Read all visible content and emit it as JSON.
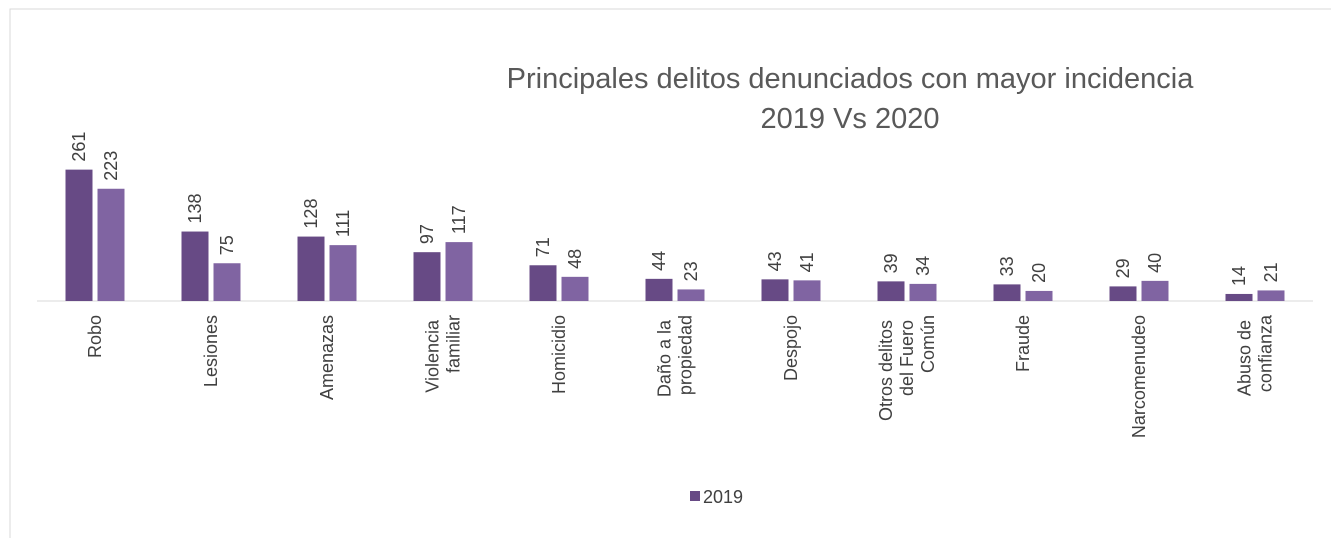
{
  "chart_data": {
    "type": "bar",
    "title": [
      "Principales delitos denunciados  con mayor incidencia",
      "2019 Vs 2020"
    ],
    "categories": [
      "Robo",
      "Lesiones",
      "Amenazas",
      "Violencia familiar",
      "Homicidio",
      "Daño a la propiedad",
      "Despojo",
      "Otros delitos del Fuero Común",
      "Fraude",
      "Narcomenudeo",
      "Abuso de confianza"
    ],
    "series": [
      {
        "name": "2019",
        "color": "#674a85",
        "values": [
          261,
          138,
          128,
          97,
          71,
          44,
          43,
          39,
          33,
          29,
          14
        ]
      },
      {
        "color": "#8064a2",
        "values": [
          223,
          75,
          111,
          117,
          48,
          23,
          41,
          34,
          20,
          40,
          21
        ]
      }
    ],
    "ylim": [
      0,
      300
    ],
    "grid": false
  }
}
